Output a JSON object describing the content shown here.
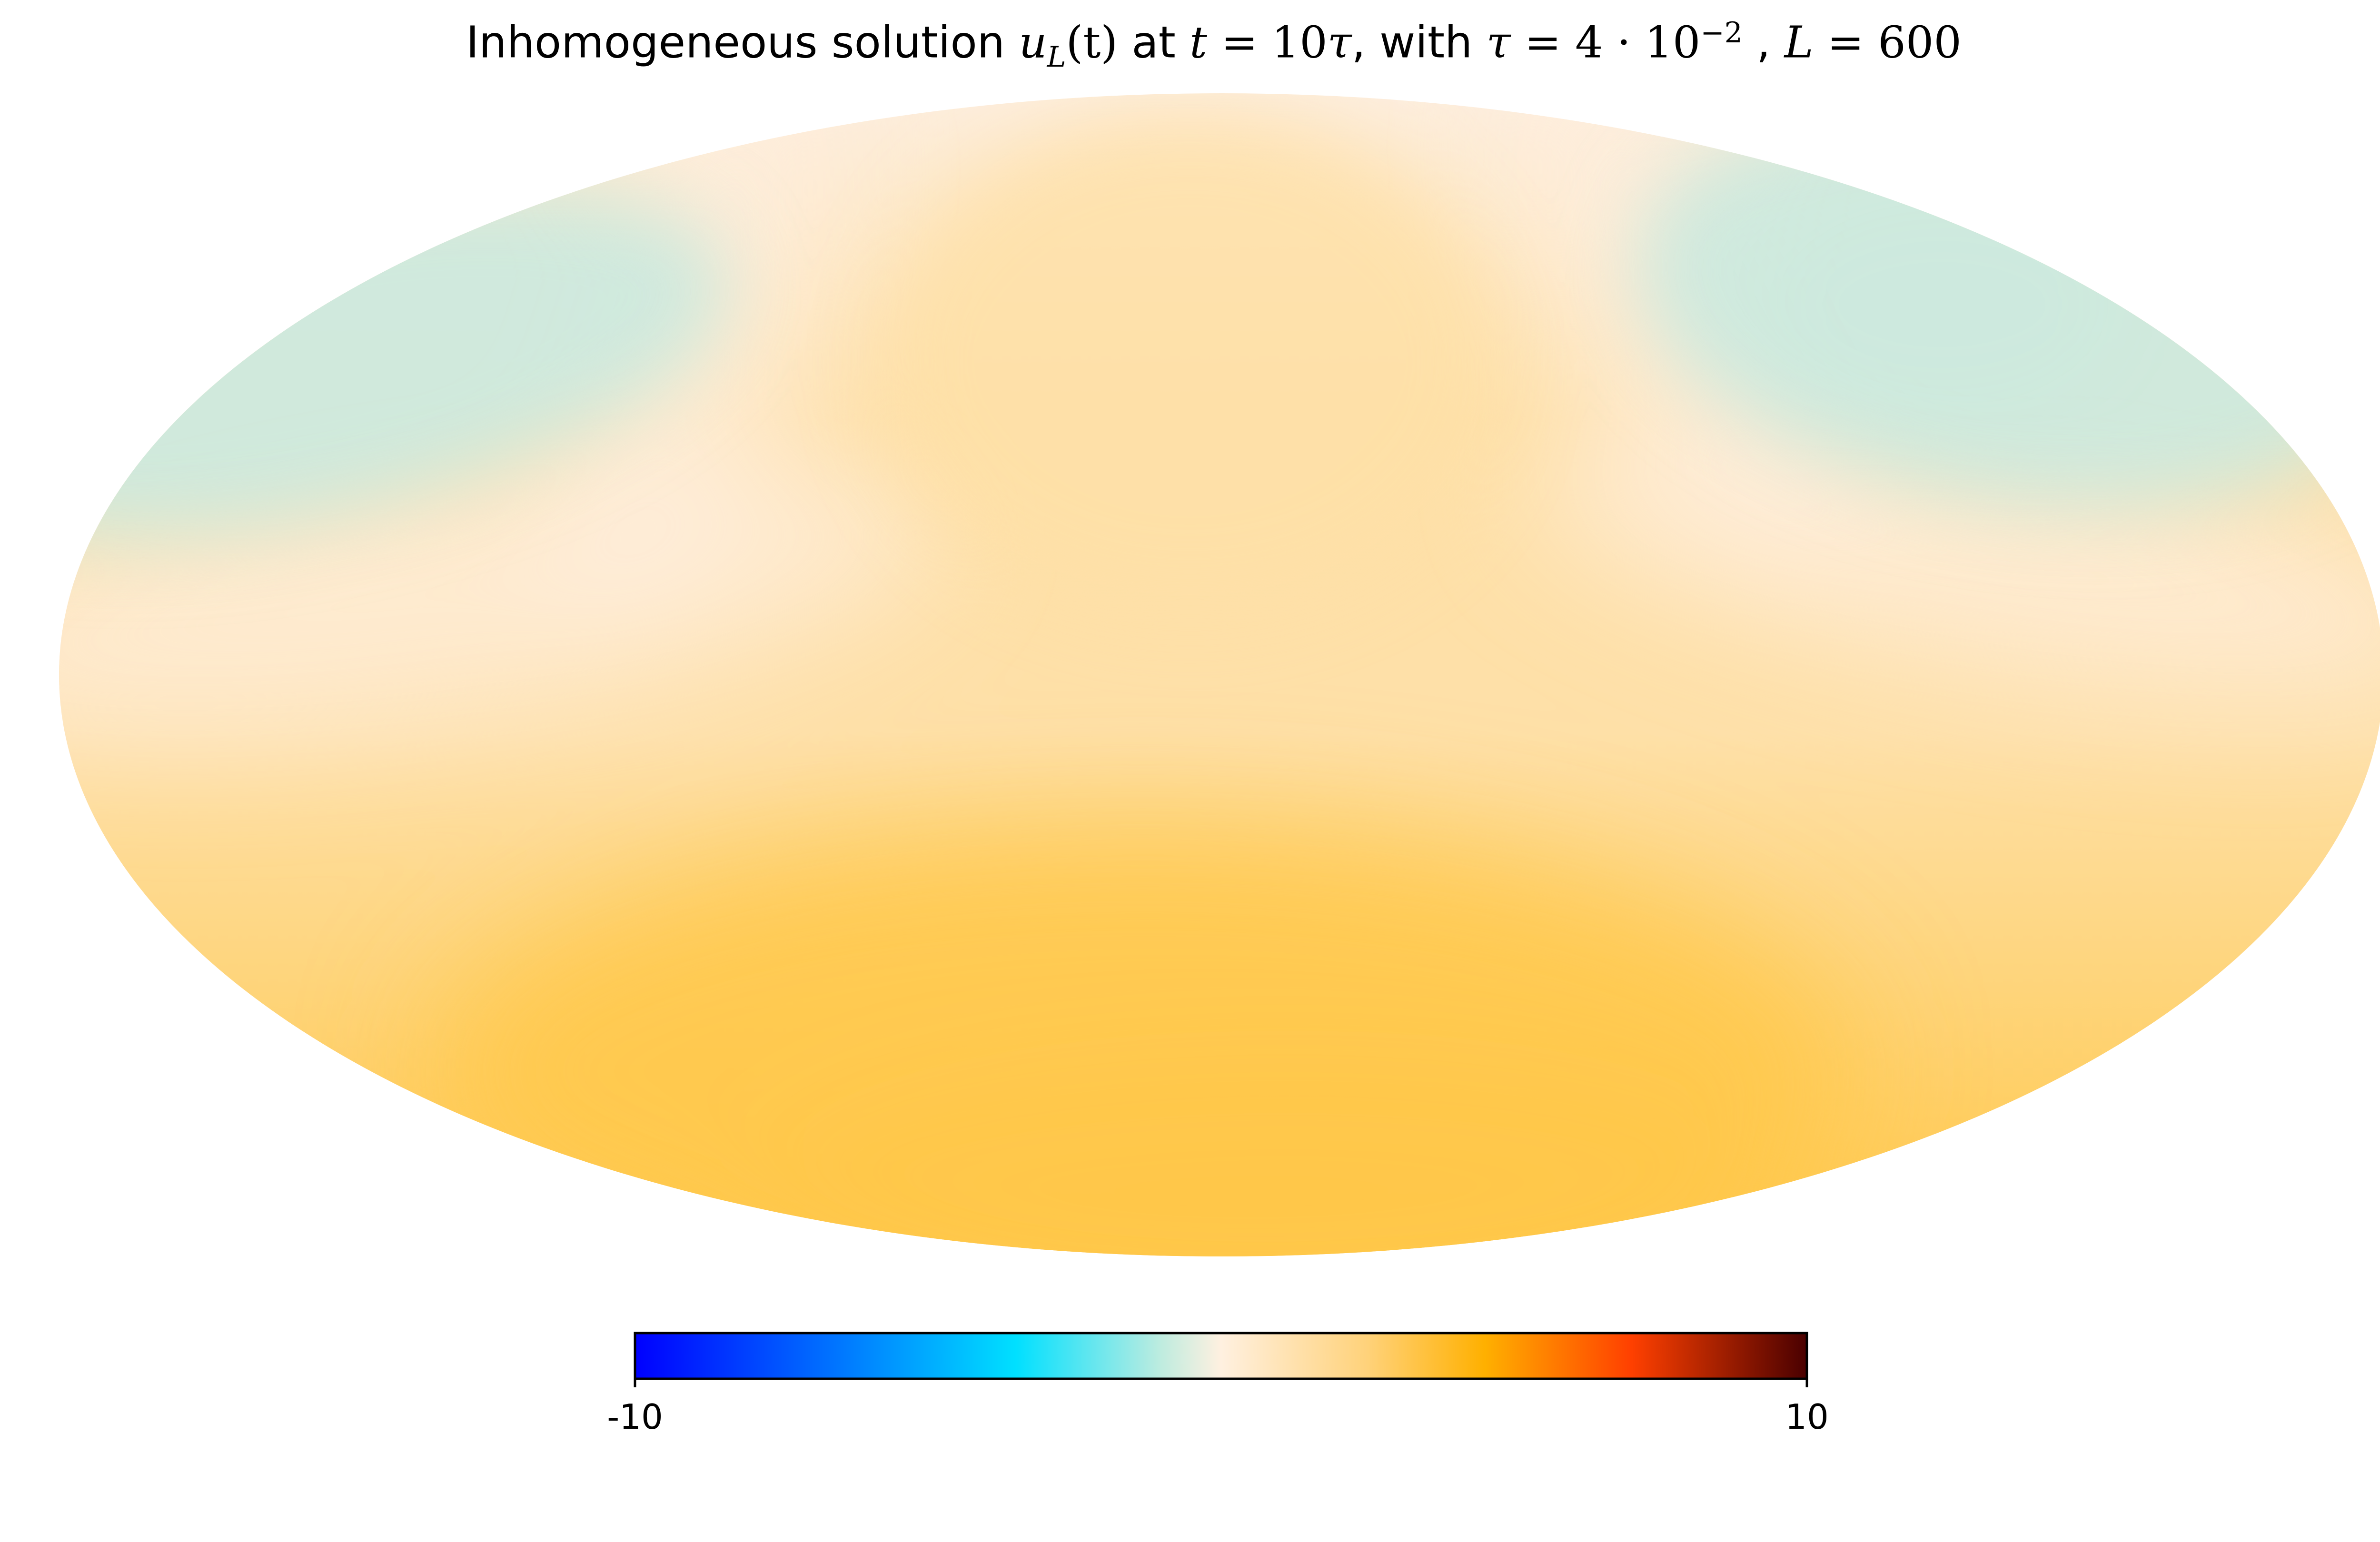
{
  "chart_data": {
    "type": "heatmap",
    "projection": "mollweide",
    "title": {
      "prefix": "Inhomogeneous solution ",
      "u": "u",
      "u_sub": "L",
      "u_arg": "(t)",
      "at": " at ",
      "t_expr": "t",
      "eq1": " = 10",
      "tau1": "τ",
      "with": ", with ",
      "tau2": "τ",
      "eq2": " = 4 · 10",
      "exp": "−2",
      "sep": " , ",
      "L": "L",
      "eq3": " = 600"
    },
    "colorbar": {
      "min_label": "-10",
      "max_label": "10",
      "range": [
        -10,
        10
      ],
      "placement": "bottom",
      "colormap_stops": [
        {
          "value": -10,
          "color": "#0000ff"
        },
        {
          "value": -6.5,
          "color": "#0077ff"
        },
        {
          "value": -3.5,
          "color": "#00e0ff"
        },
        {
          "value": -1.0,
          "color": "#c0ecdf"
        },
        {
          "value": 0,
          "color": "#fff0e0"
        },
        {
          "value": 2.5,
          "color": "#ffd27a"
        },
        {
          "value": 4.5,
          "color": "#ffb000"
        },
        {
          "value": 7.0,
          "color": "#ff4000"
        },
        {
          "value": 10,
          "color": "#4a0000"
        }
      ]
    },
    "field_colors": {
      "north_lobes": "#cde9de",
      "boundary": "#fdeede",
      "mid": "#fee0a8",
      "south": "#ffc84a"
    }
  }
}
